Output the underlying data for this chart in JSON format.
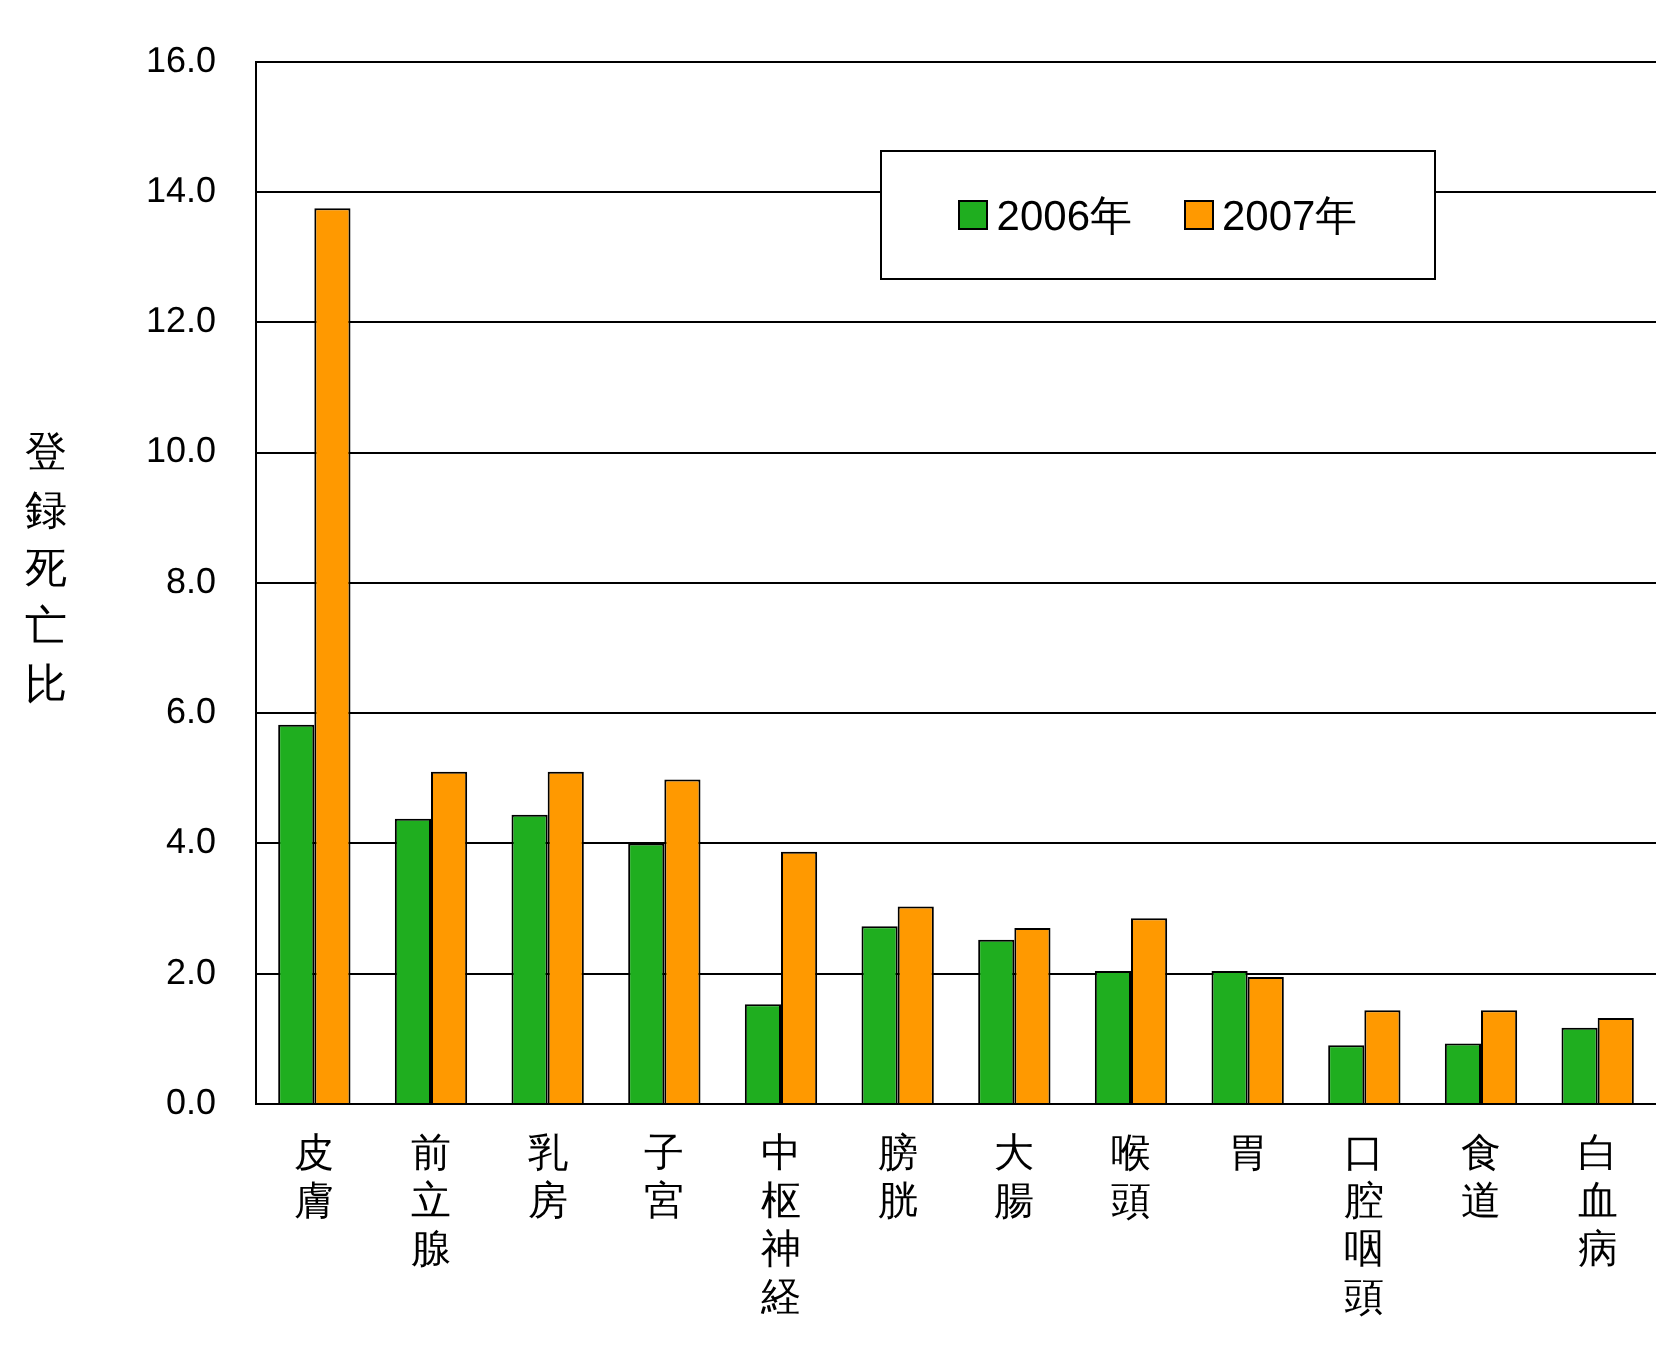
{
  "chart_data": {
    "type": "bar",
    "ylabel": "登録死亡比",
    "categories": [
      "皮膚",
      "前立腺",
      "乳房",
      "子宮",
      "中枢神経",
      "膀胱",
      "大腸",
      "喉頭",
      "胃",
      "口腔咽頭",
      "食道",
      "白血病"
    ],
    "series": [
      {
        "name": "2006年",
        "color": "#1fae1f",
        "values": [
          5.82,
          4.38,
          4.44,
          4.0,
          1.53,
          2.73,
          2.52,
          2.04,
          2.04,
          0.9,
          0.93,
          1.17
        ]
      },
      {
        "name": "2007年",
        "color": "#ff9900",
        "values": [
          13.75,
          5.1,
          5.1,
          4.98,
          3.87,
          3.03,
          2.7,
          2.85,
          1.95,
          1.44,
          1.44,
          1.32
        ]
      }
    ],
    "ylim": [
      0,
      16
    ],
    "yticks": [
      {
        "value": 0,
        "label": "0.0"
      },
      {
        "value": 2,
        "label": "2.0"
      },
      {
        "value": 4,
        "label": "4.0"
      },
      {
        "value": 6,
        "label": "6.0"
      },
      {
        "value": 8,
        "label": "8.0"
      },
      {
        "value": 10,
        "label": "10.0"
      },
      {
        "value": 12,
        "label": "12.0"
      },
      {
        "value": 14,
        "label": "14.0"
      },
      {
        "value": 16,
        "label": "16.0"
      }
    ],
    "grid": "y",
    "legend": "top right"
  }
}
